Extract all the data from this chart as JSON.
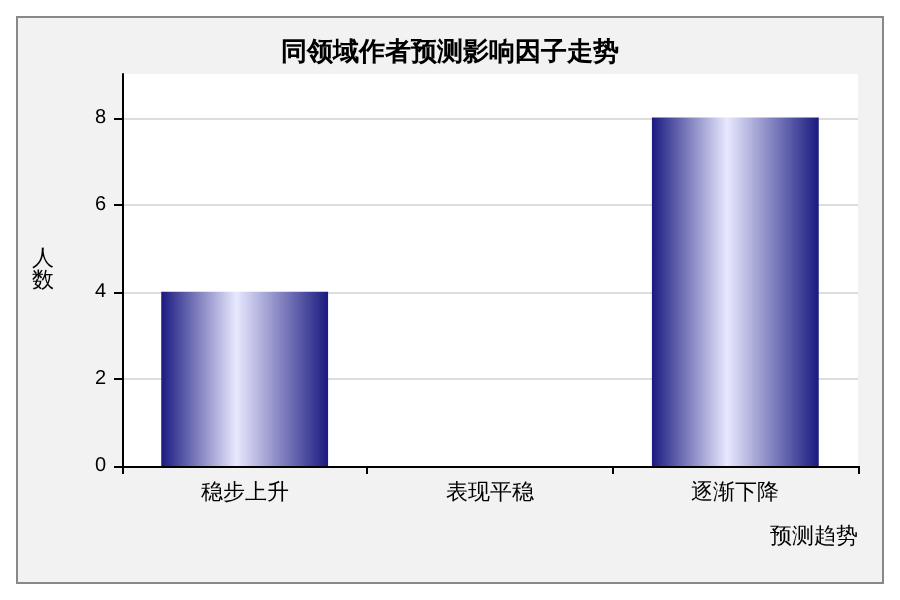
{
  "chart_data": {
    "type": "bar",
    "title": "同领域作者预测影响因子走势",
    "xlabel": "预测趋势",
    "ylabel": "人数",
    "categories": [
      "稳步上升",
      "表现平稳",
      "逐渐下降"
    ],
    "values": [
      4,
      0,
      8
    ],
    "color": "#1a1a80",
    "ylim": [
      0,
      9
    ],
    "yticks": [
      0,
      2,
      4,
      6,
      8
    ],
    "grid": "y"
  }
}
